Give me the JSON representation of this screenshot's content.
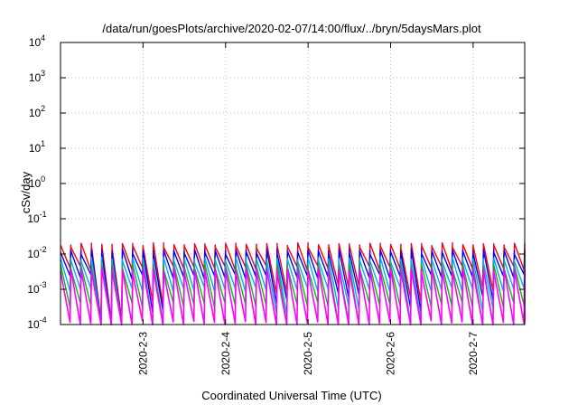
{
  "chart_data": {
    "type": "line",
    "title": "/data/run/goesPlots/archive/2020-02-07/14:00/flux/../bryn/5daysMars.plot",
    "xlabel": "Coordinated Universal Time (UTC)",
    "ylabel": "cSv/day",
    "yscale": "log",
    "ylim": [
      0.0001,
      10000
    ],
    "xlim": [
      "2020-02-02T00:00",
      "2020-02-07T15:00"
    ],
    "grid": true,
    "legend": "none",
    "x_ticks": [
      {
        "label": "2020-2-3",
        "t": "2020-02-03T00:00"
      },
      {
        "label": "2020-2-4",
        "t": "2020-02-04T00:00"
      },
      {
        "label": "2020-2-5",
        "t": "2020-02-05T00:00"
      },
      {
        "label": "2020-2-6",
        "t": "2020-02-06T00:00"
      },
      {
        "label": "2020-2-7",
        "t": "2020-02-07T00:00"
      }
    ],
    "y_ticks": [
      {
        "base": "10",
        "exp": "-4",
        "value": 0.0001
      },
      {
        "base": "10",
        "exp": "-3",
        "value": 0.001
      },
      {
        "base": "10",
        "exp": "-2",
        "value": 0.01
      },
      {
        "base": "10",
        "exp": "-1",
        "value": 0.1
      },
      {
        "base": "10",
        "exp": "0",
        "value": 1
      },
      {
        "base": "10",
        "exp": "1",
        "value": 10
      },
      {
        "base": "10",
        "exp": "2",
        "value": 100
      },
      {
        "base": "10",
        "exp": "3",
        "value": 1000
      },
      {
        "base": "10",
        "exp": "4",
        "value": 10000
      }
    ],
    "series": [
      {
        "color": "#ff0000",
        "peak": 0.018,
        "trough": 0.0045
      },
      {
        "color": "#0000ff",
        "peak": 0.012,
        "trough": 0.0025
      },
      {
        "color": "#00aaff",
        "peak": 0.007,
        "trough": 0.0011
      },
      {
        "color": "#00c000",
        "peak": 0.0045,
        "trough": 0.0004
      },
      {
        "color": "#ff00ff",
        "peak": 0.0035,
        "trough": 0.00012
      }
    ],
    "cycle_hours": 3
  }
}
